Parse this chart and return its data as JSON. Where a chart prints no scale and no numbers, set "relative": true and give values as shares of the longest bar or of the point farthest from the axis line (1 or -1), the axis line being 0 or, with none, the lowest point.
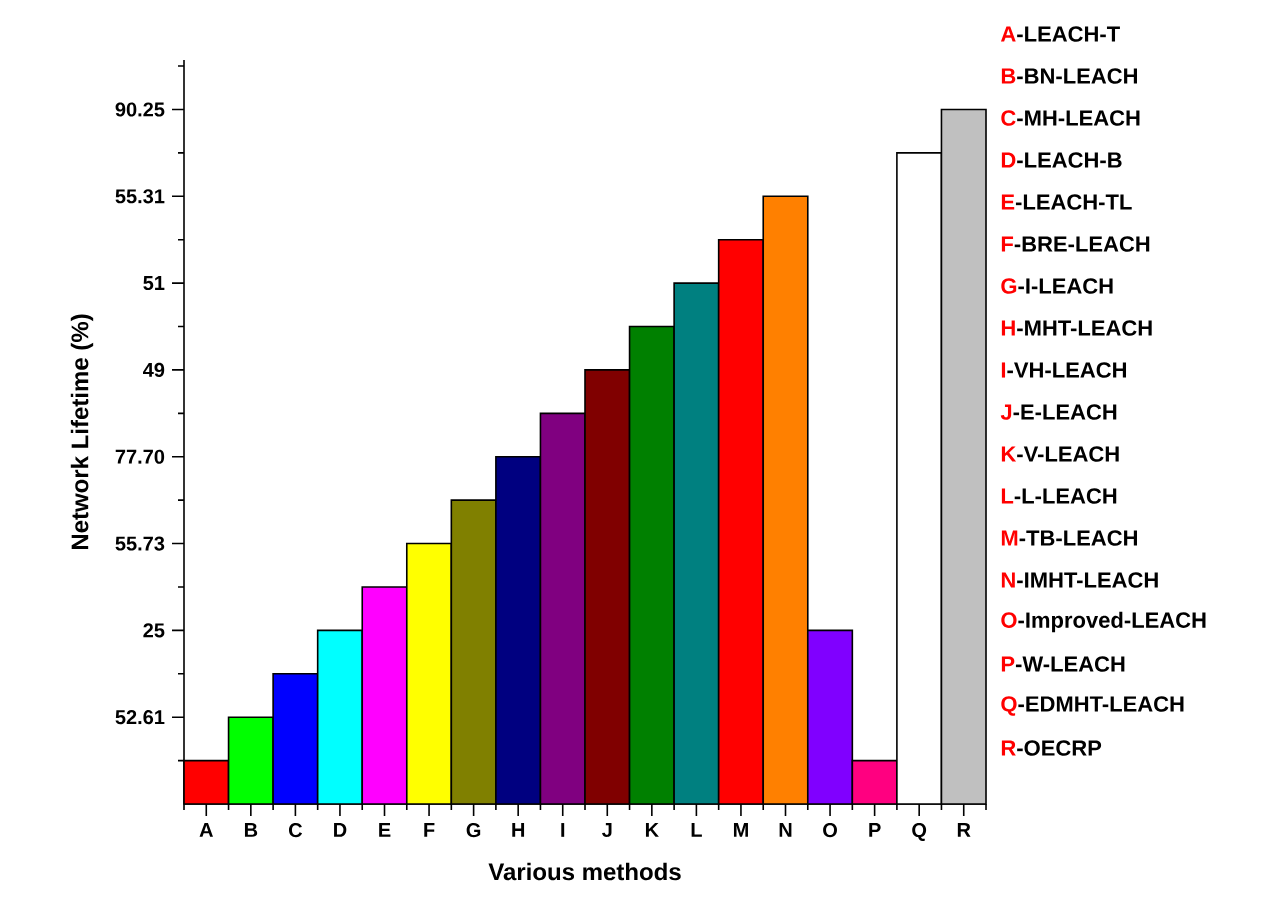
{
  "chart_data": {
    "type": "bar",
    "relative": true,
    "xlabel": "Various methods",
    "ylabel": "Network Lifetime (%)",
    "categories": [
      "A",
      "B",
      "C",
      "D",
      "E",
      "F",
      "G",
      "H",
      "I",
      "J",
      "K",
      "L",
      "M",
      "N",
      "O",
      "P",
      "Q",
      "R"
    ],
    "values": [
      0.0625,
      0.125,
      0.1875,
      0.25,
      0.3125,
      0.375,
      0.4375,
      0.5,
      0.5625,
      0.625,
      0.6875,
      0.75,
      0.8125,
      0.875,
      0.25,
      0.0625,
      0.9375,
      1
    ],
    "colors": [
      "#ff0000",
      "#00ff00",
      "#0000ff",
      "#00ffff",
      "#ff00ff",
      "#ffff00",
      "#808000",
      "#000080",
      "#800080",
      "#800000",
      "#008000",
      "#008080",
      "#ff0000",
      "#ff8000",
      "#8000ff",
      "#ff0080",
      "#ffffff",
      "#c0c0c0"
    ],
    "annotations": [
      "52.61",
      "25",
      "55.73",
      "77.70",
      "49",
      "51",
      "55.31",
      "90.25",
      "-LEACH-T",
      "-BN-LEACH",
      "-MH-LEACH",
      "-LEACH-B",
      "-LEACH-TL",
      "-BRE-LEACH",
      "-I-LEACH",
      "-MHT-LEACH",
      "-VH-LEACH",
      "-E-LEACH",
      "-V-LEACH",
      "-L-LEACH",
      "-TB-LEACH",
      "-IMHT-LEACH",
      "-Improved-LEACH",
      "-W-LEACH",
      "-EDMHT-LEACH",
      "-OECRP"
    ]
  }
}
